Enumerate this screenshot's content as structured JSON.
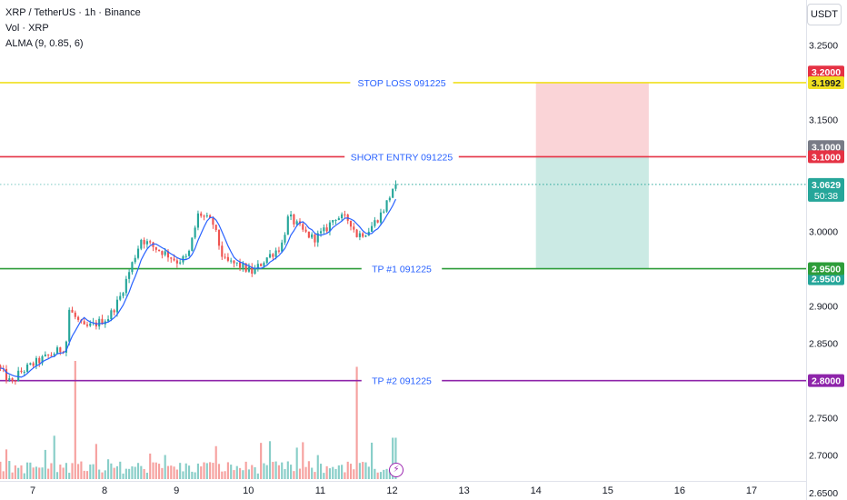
{
  "header": {
    "symbol_line": "XRP / TetherUS · 1h · Binance",
    "volume_line": "Vol · XRP",
    "alma_line": "ALMA (9, 0.85, 6)",
    "currency": "USDT"
  },
  "colors": {
    "up": "#26a69a",
    "down": "#ef5350",
    "stop_loss": "#f0e020",
    "short_entry": "#e53244",
    "tp1": "#2e9d3a",
    "tp2": "#8e24aa",
    "alma": "#2962ff",
    "label_text": "#2962ff",
    "risk_zone": "#f8c6c9",
    "reward_zone": "#c2e6df"
  },
  "chart_data": {
    "type": "candlestick",
    "symbol": "XRP / TetherUS",
    "interval": "1h",
    "exchange": "Binance",
    "ylim": [
      2.64,
      3.31
    ],
    "y_ticks": [
      3.25,
      3.2,
      3.15,
      3.1,
      3.05,
      3.0,
      2.95,
      2.9,
      2.85,
      2.8,
      2.75,
      2.7,
      2.65
    ],
    "y_tick_labels": [
      "3.2500",
      "3.2000",
      "3.1500",
      "3.1000",
      "3.0500",
      "3.0000",
      "2.9500",
      "2.9000",
      "2.8500",
      "2.8000",
      "2.7500",
      "2.7000",
      "2.6500"
    ],
    "x_ticks": [
      {
        "label": "7",
        "day": 7
      },
      {
        "label": "8",
        "day": 8
      },
      {
        "label": "9",
        "day": 9
      },
      {
        "label": "10",
        "day": 10
      },
      {
        "label": "11",
        "day": 11
      },
      {
        "label": "12",
        "day": 12
      },
      {
        "label": "13",
        "day": 13
      },
      {
        "label": "14",
        "day": 14
      },
      {
        "label": "15",
        "day": 15
      },
      {
        "label": "16",
        "day": 16
      },
      {
        "label": "17",
        "day": 17
      }
    ],
    "x_start_day": 6.55,
    "last_price": 3.0629,
    "countdown": "50:38",
    "price_path": [
      [
        6.55,
        2.82
      ],
      [
        6.75,
        2.795
      ],
      [
        6.85,
        2.81
      ],
      [
        7.1,
        2.825
      ],
      [
        7.3,
        2.835
      ],
      [
        7.5,
        2.845
      ],
      [
        7.55,
        2.895
      ],
      [
        7.75,
        2.87
      ],
      [
        7.9,
        2.875
      ],
      [
        8.1,
        2.885
      ],
      [
        8.25,
        2.91
      ],
      [
        8.4,
        2.95
      ],
      [
        8.55,
        2.99
      ],
      [
        8.7,
        2.98
      ],
      [
        8.9,
        2.97
      ],
      [
        9.05,
        2.96
      ],
      [
        9.2,
        2.965
      ],
      [
        9.35,
        3.025
      ],
      [
        9.55,
        3.01
      ],
      [
        9.7,
        2.96
      ],
      [
        9.9,
        2.955
      ],
      [
        10.1,
        2.945
      ],
      [
        10.3,
        2.965
      ],
      [
        10.5,
        2.98
      ],
      [
        10.6,
        3.02
      ],
      [
        10.8,
        3.0
      ],
      [
        10.95,
        2.99
      ],
      [
        11.1,
        3.0
      ],
      [
        11.25,
        3.02
      ],
      [
        11.45,
        3.015
      ],
      [
        11.55,
        2.995
      ],
      [
        11.7,
        3.0
      ],
      [
        11.9,
        3.025
      ],
      [
        12.0,
        3.045
      ],
      [
        12.07,
        3.063
      ]
    ],
    "volume_spikes": [
      {
        "day": 7.58,
        "rel": 1.0,
        "up": true
      },
      {
        "day": 11.52,
        "rel": 0.95,
        "up": false
      },
      {
        "day": 12.03,
        "rel": 0.35,
        "up": true
      }
    ],
    "levels": [
      {
        "name": "STOP LOSS 091225",
        "price": 3.1992,
        "tag_price": "3.1992",
        "color_key": "stop_loss"
      },
      {
        "name": "SHORT ENTRY 091225",
        "price": 3.1,
        "tag_price": "3.1000",
        "color_key": "short_entry"
      },
      {
        "name": "TP #1 091225",
        "price": 2.95,
        "tag_price": "2.9500",
        "color_key": "tp1"
      },
      {
        "name": "TP #2 091225",
        "price": 2.8,
        "tag_price": "2.8000",
        "color_key": "tp2"
      }
    ],
    "extra_tags": [
      {
        "text": "3.2000",
        "price": 3.2,
        "color": "#e53244",
        "text_color": "#ffffff"
      },
      {
        "text": "3.1000",
        "price": 3.1,
        "color": "#787b86",
        "text_color": "#ffffff"
      },
      {
        "text": "2.9500",
        "price": 2.95,
        "color": "#26a69a",
        "text_color": "#ffffff"
      }
    ],
    "position_box": {
      "start_day": 14.0,
      "end_day": 15.57,
      "stop": 3.2,
      "entry": 3.1,
      "target": 2.95
    }
  }
}
